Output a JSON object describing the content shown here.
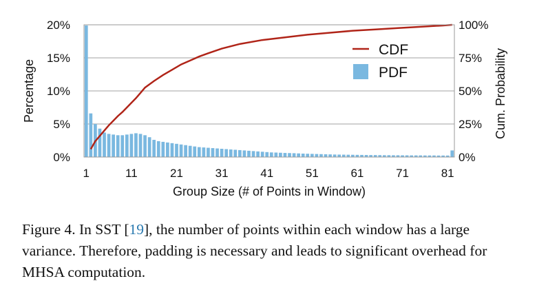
{
  "chart_data": {
    "type": "bar",
    "xlabel": "Group Size (# of Points in Window)",
    "ylabel": "Percentage",
    "y2label": "Cum. Probability",
    "xlim": [
      1,
      82
    ],
    "ylim": [
      0,
      20
    ],
    "y2lim": [
      0,
      100
    ],
    "x_ticks": [
      1,
      11,
      21,
      31,
      41,
      51,
      61,
      71,
      81
    ],
    "y_ticks": [
      0,
      5,
      10,
      15,
      20
    ],
    "y_tick_labels": [
      "0%",
      "5%",
      "10%",
      "15%",
      "20%"
    ],
    "y2_ticks": [
      0,
      25,
      50,
      75,
      100
    ],
    "y2_tick_labels": [
      "0%",
      "25%",
      "50%",
      "75%",
      "100%"
    ],
    "grid": "horizontal",
    "legend_position": "top-right",
    "series": [
      {
        "name": "PDF",
        "kind": "bar",
        "color": "#7ab8e0",
        "x": [
          1,
          2,
          3,
          4,
          5,
          6,
          7,
          8,
          9,
          10,
          11,
          12,
          13,
          14,
          15,
          16,
          17,
          18,
          19,
          20,
          21,
          22,
          23,
          24,
          25,
          26,
          27,
          28,
          29,
          30,
          31,
          32,
          33,
          34,
          35,
          36,
          37,
          38,
          39,
          40,
          41,
          42,
          43,
          44,
          45,
          46,
          47,
          48,
          49,
          50,
          51,
          52,
          53,
          54,
          55,
          56,
          57,
          58,
          59,
          60,
          61,
          62,
          63,
          64,
          65,
          66,
          67,
          68,
          69,
          70,
          71,
          72,
          73,
          74,
          75,
          76,
          77,
          78,
          79,
          80,
          81,
          82
        ],
        "values": [
          19.9,
          6.6,
          5.0,
          4.3,
          3.7,
          3.5,
          3.4,
          3.3,
          3.3,
          3.4,
          3.5,
          3.6,
          3.5,
          3.3,
          3.0,
          2.6,
          2.4,
          2.3,
          2.2,
          2.1,
          2.0,
          1.9,
          1.8,
          1.7,
          1.6,
          1.5,
          1.45,
          1.4,
          1.35,
          1.3,
          1.25,
          1.2,
          1.15,
          1.1,
          1.05,
          1.0,
          0.95,
          0.9,
          0.85,
          0.8,
          0.75,
          0.7,
          0.68,
          0.65,
          0.62,
          0.6,
          0.58,
          0.55,
          0.52,
          0.5,
          0.48,
          0.46,
          0.44,
          0.42,
          0.4,
          0.38,
          0.37,
          0.36,
          0.35,
          0.34,
          0.33,
          0.32,
          0.31,
          0.3,
          0.3,
          0.29,
          0.28,
          0.28,
          0.27,
          0.27,
          0.26,
          0.26,
          0.25,
          0.25,
          0.25,
          0.24,
          0.24,
          0.24,
          0.23,
          0.23,
          0.23,
          1.0
        ]
      },
      {
        "name": "CDF",
        "kind": "line",
        "axis": "right",
        "color": "#b02418",
        "x": [
          2,
          3,
          4,
          5,
          6,
          7,
          8,
          9,
          10,
          11,
          12,
          13,
          14,
          16,
          18,
          20,
          22,
          24,
          26,
          28,
          31,
          35,
          40,
          45,
          50,
          55,
          60,
          65,
          70,
          75,
          80,
          82
        ],
        "values": [
          6,
          12,
          16,
          20,
          24,
          27.5,
          31,
          34,
          37.5,
          41,
          44.5,
          48.5,
          52.5,
          57.5,
          62,
          66,
          70,
          73,
          76,
          78.5,
          82,
          85.5,
          88.5,
          90.5,
          92.5,
          94,
          95.5,
          96.5,
          97.5,
          98.5,
          99.5,
          100
        ]
      }
    ]
  },
  "caption": {
    "prefix": "Figure 4. In SST [",
    "citation": "19",
    "suffix": "], the number of points within each window has a large variance. Therefore, padding is necessary and leads to significant overhead for MHSA computation."
  }
}
